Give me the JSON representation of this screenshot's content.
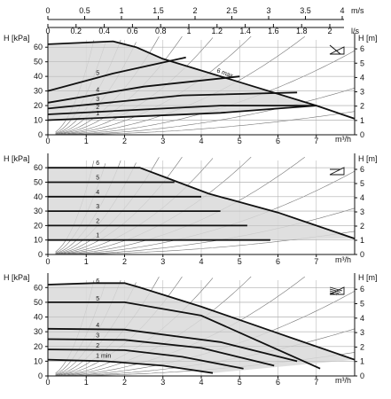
{
  "chart_data": [
    {
      "type": "line",
      "panel": "top",
      "control_mode": "proportional pressure",
      "xlabel": "m³/h",
      "ylabel_left": "H [kPa]",
      "ylabel_right": "H [m]",
      "xlim": [
        0,
        8
      ],
      "ylim": [
        0,
        65
      ],
      "x_ticks": [
        "0",
        "1",
        "2",
        "3",
        "4",
        "5",
        "6",
        "7"
      ],
      "y_ticks_left": [
        "0",
        "10",
        "20",
        "30",
        "40",
        "50",
        "60"
      ],
      "y_ticks_right": [
        "0",
        "1",
        "2",
        "3",
        "4",
        "5",
        "6"
      ],
      "top_axis_ms": {
        "label": "m/s",
        "ticks": [
          "0",
          "0.5",
          "1",
          "1.5",
          "2",
          "2.5",
          "3",
          "3.5",
          "4"
        ]
      },
      "top_axis_ls": {
        "label": "l/s",
        "ticks": [
          "0",
          "0.2",
          "0.4",
          "0.6",
          "0.8",
          "1",
          "1.2",
          "1.4",
          "1.6",
          "1.8",
          "2"
        ]
      },
      "curves": [
        {
          "name": "1",
          "points": [
            [
              0,
              10
            ],
            [
              4.5,
              15
            ],
            [
              7,
              20
            ]
          ]
        },
        {
          "name": "2",
          "points": [
            [
              0,
              14
            ],
            [
              4.5,
              20
            ],
            [
              7,
              20
            ]
          ]
        },
        {
          "name": "3",
          "points": [
            [
              0,
              18
            ],
            [
              3.5,
              27
            ],
            [
              6.5,
              29
            ]
          ]
        },
        {
          "name": "4",
          "points": [
            [
              0,
              22
            ],
            [
              2.5,
              33
            ],
            [
              5,
              40
            ]
          ]
        },
        {
          "name": "5",
          "points": [
            [
              0,
              30
            ],
            [
              1.7,
              42
            ],
            [
              3.6,
              53
            ]
          ]
        },
        {
          "name": "6 max",
          "points": [
            [
              0,
              62
            ],
            [
              1.7,
              64
            ],
            [
              2.3,
              60
            ],
            [
              3,
              52
            ],
            [
              5,
              36
            ],
            [
              7,
              20
            ],
            [
              8,
              11
            ]
          ]
        }
      ]
    },
    {
      "type": "line",
      "panel": "middle",
      "control_mode": "constant pressure",
      "xlabel": "m³/h",
      "ylabel_left": "H [kPa]",
      "ylabel_right": "H [m]",
      "xlim": [
        0,
        8
      ],
      "ylim": [
        0,
        65
      ],
      "x_ticks": [
        "0",
        "1",
        "2",
        "3",
        "4",
        "5",
        "6",
        "7"
      ],
      "y_ticks_left": [
        "0",
        "10",
        "20",
        "30",
        "40",
        "50",
        "60"
      ],
      "y_ticks_right": [
        "0",
        "1",
        "2",
        "3",
        "4",
        "5",
        "6"
      ],
      "curves": [
        {
          "name": "1",
          "points": [
            [
              0,
              10
            ],
            [
              5.8,
              10
            ]
          ]
        },
        {
          "name": "2",
          "points": [
            [
              0,
              20
            ],
            [
              5.2,
              20
            ]
          ]
        },
        {
          "name": "3",
          "points": [
            [
              0,
              30
            ],
            [
              4.5,
              30
            ]
          ]
        },
        {
          "name": "4",
          "points": [
            [
              0,
              40
            ],
            [
              4,
              40
            ]
          ]
        },
        {
          "name": "5",
          "points": [
            [
              0,
              50
            ],
            [
              3.3,
              50
            ]
          ]
        },
        {
          "name": "6",
          "points": [
            [
              0,
              60
            ],
            [
              2.4,
              60
            ],
            [
              3.1,
              53
            ],
            [
              4.2,
              42
            ],
            [
              6,
              29
            ],
            [
              7,
              20
            ],
            [
              8,
              11
            ]
          ]
        }
      ]
    },
    {
      "type": "line",
      "panel": "bottom",
      "control_mode": "fixed speed",
      "xlabel": "m³/h",
      "ylabel_left": "H [kPa]",
      "ylabel_right": "H [m]",
      "xlim": [
        0,
        8
      ],
      "ylim": [
        0,
        65
      ],
      "x_ticks": [
        "0",
        "1",
        "2",
        "3",
        "4",
        "5",
        "6",
        "7"
      ],
      "y_ticks_left": [
        "0",
        "10",
        "20",
        "30",
        "40",
        "50",
        "60"
      ],
      "y_ticks_right": [
        "0",
        "1",
        "2",
        "3",
        "4",
        "5",
        "6"
      ],
      "curves": [
        {
          "name": "1 min",
          "points": [
            [
              0,
              11
            ],
            [
              1.5,
              10
            ],
            [
              3,
              7
            ],
            [
              4.3,
              2
            ]
          ]
        },
        {
          "name": "2",
          "points": [
            [
              0,
              18
            ],
            [
              2,
              17.5
            ],
            [
              3.5,
              13
            ],
            [
              5.1,
              5
            ]
          ]
        },
        {
          "name": "3",
          "points": [
            [
              0,
              25
            ],
            [
              2,
              24.5
            ],
            [
              4,
              19
            ],
            [
              5.9,
              7
            ]
          ]
        },
        {
          "name": "4",
          "points": [
            [
              0,
              32
            ],
            [
              2,
              31.5
            ],
            [
              4.5,
              23
            ],
            [
              6.5,
              10
            ]
          ]
        },
        {
          "name": "5",
          "points": [
            [
              0,
              50
            ],
            [
              2,
              50
            ],
            [
              4,
              41
            ],
            [
              7.1,
              5
            ]
          ]
        },
        {
          "name": "6",
          "points": [
            [
              0,
              62
            ],
            [
              1.2,
              63
            ],
            [
              2,
              63
            ],
            [
              2.4,
              60
            ],
            [
              4,
              47
            ],
            [
              6,
              29
            ],
            [
              8,
              11
            ]
          ]
        }
      ]
    }
  ]
}
